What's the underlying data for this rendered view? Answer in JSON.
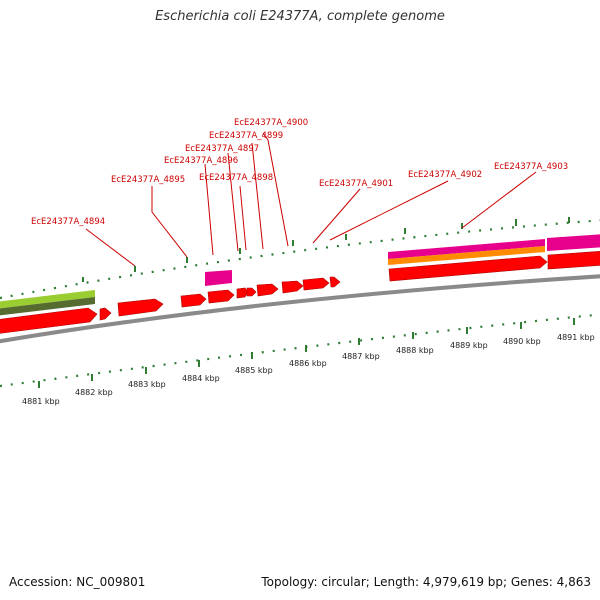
{
  "header": {
    "title": "Escherichia coli E24377A, complete genome"
  },
  "footer": {
    "accession": "Accession: NC_009801",
    "topology": "Topology: circular; Length: 4,979,619 bp; Genes: 4,863"
  },
  "colors": {
    "cds": "#ff0000",
    "magenta_feature": "#e6008c",
    "orange_feature": "#ff8c00",
    "green_feature": "#9acd32",
    "dark_green_feature": "#556b2f",
    "backbone": "#888888",
    "ticks": "#2e7d32",
    "labels": "#cc0000"
  },
  "scale": {
    "unit": "kbp",
    "tick_labels": [
      "4881 kbp",
      "4882 kbp",
      "4883 kbp",
      "4884 kbp",
      "4885 kbp",
      "4886 kbp",
      "4887 kbp",
      "4888 kbp",
      "4889 kbp",
      "4890 kbp",
      "4891 kbp"
    ]
  },
  "gene_labels": [
    "EcE24377A_4894",
    "EcE24377A_4895",
    "EcE24377A_4896",
    "EcE24377A_4897",
    "EcE24377A_4898",
    "EcE24377A_4899",
    "EcE24377A_4900",
    "EcE24377A_4901",
    "EcE24377A_4902",
    "EcE24377A_4903"
  ]
}
